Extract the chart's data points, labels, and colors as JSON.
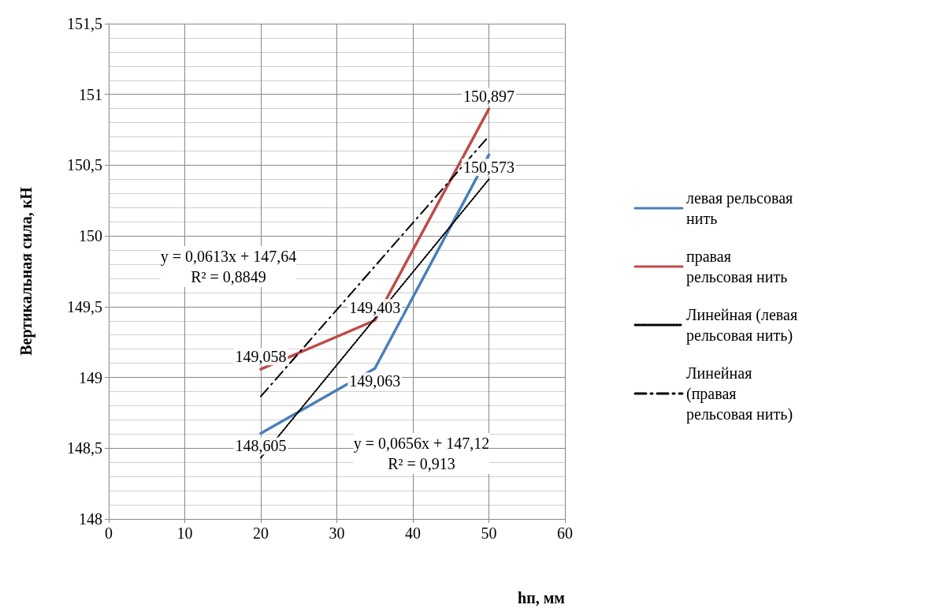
{
  "chart_data": {
    "type": "line",
    "xlabel": "hп, мм",
    "ylabel": "Вертикальная сила, кН",
    "xlim": [
      0,
      60
    ],
    "xticks": [
      0,
      10,
      20,
      30,
      40,
      50,
      60
    ],
    "ylim": [
      148,
      151.5
    ],
    "yticks": [
      148,
      {
        "value": 148.5,
        "label": "148,5"
      },
      149,
      {
        "value": 149.5,
        "label": "149,5"
      },
      150,
      {
        "value": 150.5,
        "label": "150,5"
      },
      151,
      {
        "value": 151.5,
        "label": "151,5"
      }
    ],
    "grid": true,
    "legend": "right",
    "marker": "none",
    "series": [
      {
        "name": "левая рельсовая нить",
        "color": "#4a7ebb",
        "x": [
          20,
          35,
          50
        ],
        "values": [
          148.605,
          149.063,
          150.573
        ],
        "value_labels": [
          "148,605",
          "149,063",
          "150,573"
        ]
      },
      {
        "name": "правая рельсовая нить",
        "color": "#be4b48",
        "x": [
          20,
          35,
          50
        ],
        "values": [
          149.058,
          149.403,
          150.897
        ],
        "value_labels": [
          "149,058",
          "149,403",
          "150,897"
        ]
      },
      {
        "name": "Линейная (левая рельсовая нить)",
        "color": "#000000",
        "x": [
          20,
          50
        ],
        "values": [
          148.432,
          150.4
        ],
        "line_style": "dotted"
      },
      {
        "name": "Линейная (правая рельсовая нить)",
        "color": "#000000",
        "x": [
          20,
          50
        ],
        "values": [
          148.866,
          150.705
        ],
        "line_style": "dashed"
      }
    ],
    "annotations": [
      "y = 0,0613x + 147,64\nR² = 0,8849",
      "y = 0,0656x + 147,12\nR² = 0,913"
    ]
  }
}
